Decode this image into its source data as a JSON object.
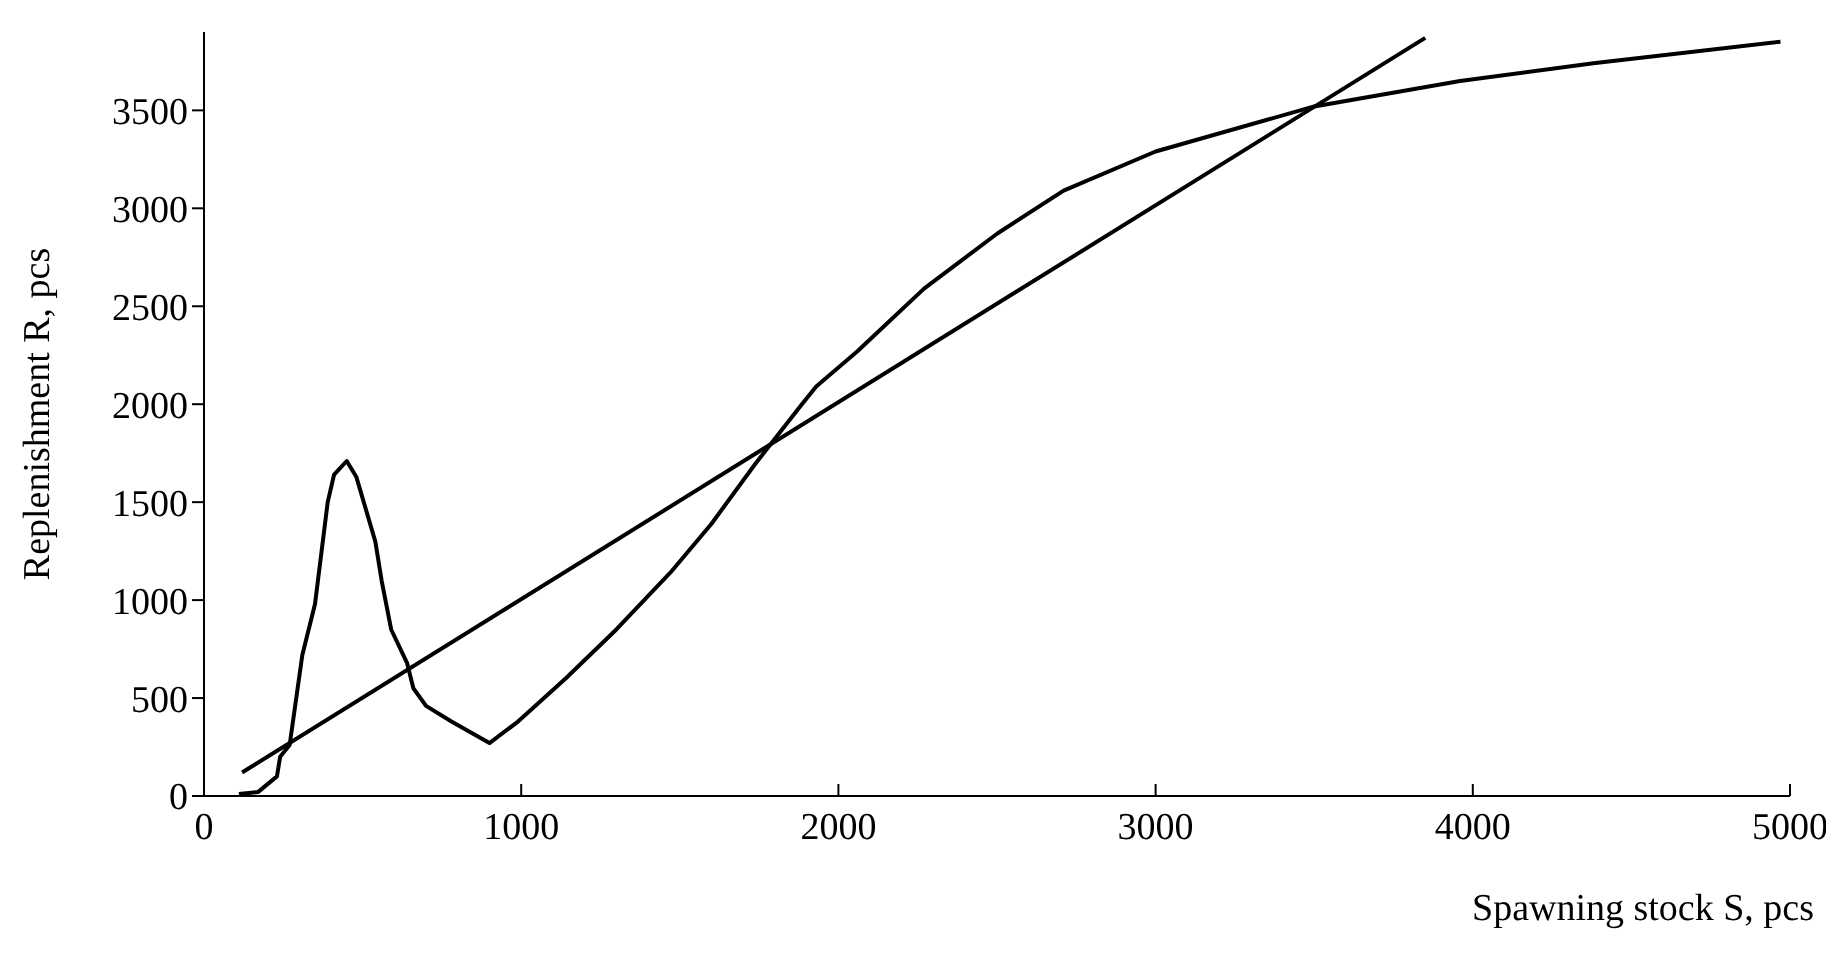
{
  "chart_data": {
    "type": "line",
    "xlabel": "Spawning stock S, pcs",
    "ylabel": "Replenishment R, pcs",
    "xlim": [
      0,
      5000
    ],
    "xticks": [
      0,
      1000,
      2000,
      3000,
      4000,
      5000
    ],
    "ylim": [
      0,
      3900
    ],
    "yticks": [
      0,
      500,
      1000,
      1500,
      2000,
      2500,
      3000,
      3500
    ],
    "marker": "none",
    "line_style": "solid",
    "series": [
      {
        "color": "#000000",
        "x": [
          110,
          170,
          230,
          240,
          270,
          310,
          350,
          390,
          410,
          450,
          480,
          540,
          560,
          590,
          640,
          660,
          700,
          780,
          900,
          990,
          1140,
          1300,
          1470,
          1600,
          1740,
          1880,
          1930,
          2060,
          2270,
          2500,
          2710,
          3000,
          3500,
          3960,
          4380,
          4970
        ],
        "values": [
          10,
          20,
          100,
          200,
          260,
          720,
          980,
          1500,
          1640,
          1710,
          1630,
          1300,
          1100,
          850,
          680,
          550,
          460,
          380,
          270,
          380,
          600,
          850,
          1140,
          1390,
          1700,
          1990,
          2090,
          2270,
          2590,
          2870,
          3090,
          3290,
          3520,
          3650,
          3740,
          3850
        ]
      },
      {
        "color": "#000000",
        "x": [
          120,
          3850
        ],
        "values": [
          120,
          3870
        ]
      }
    ]
  }
}
